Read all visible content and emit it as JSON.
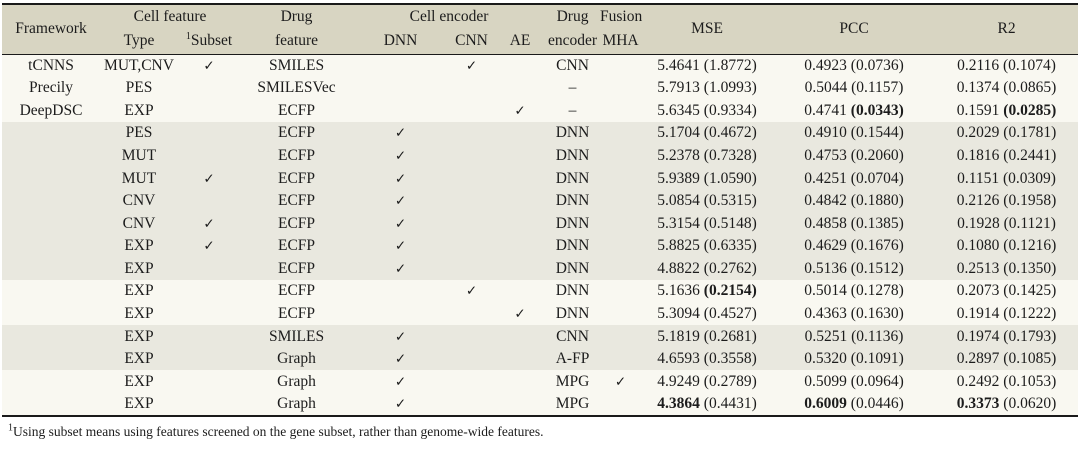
{
  "colors": {
    "header_bg": "#d8d5c2",
    "band_bg": "#e9e8df",
    "light_bg": "#f9f8f1",
    "rule": "#1a1a1a",
    "text": "#1c1c1c",
    "page_bg": "#ffffff"
  },
  "glyphs": {
    "check": "✓",
    "dash": "–"
  },
  "header": {
    "framework": "Framework",
    "cell_feature": "Cell feature",
    "type": "Type",
    "subset_sup": "1",
    "subset": "Subset",
    "drug_feature": "Drug\nfeature",
    "cell_encoder": "Cell encoder",
    "dnn": "DNN",
    "cnn": "CNN",
    "ae": "AE",
    "drug_encoder": "Drug\nencoder",
    "fusion": "Fusion\nMHA",
    "mse": "MSE",
    "pcc": "PCC",
    "r2": "R2"
  },
  "table": {
    "rows": [
      {
        "framework": "tCNNS",
        "type": "MUT,CNV",
        "subset": true,
        "drug_feature": "SMILES",
        "dnn": false,
        "cnn": true,
        "ae": false,
        "drug_encoder": "CNN",
        "mha": false,
        "shaded": false,
        "mse": {
          "mean": "5.4641",
          "std": "1.8772"
        },
        "pcc": {
          "mean": "0.4923",
          "std": "0.0736"
        },
        "r2": {
          "mean": "0.2116",
          "std": "0.1074"
        }
      },
      {
        "framework": "Precily",
        "type": "PES",
        "subset": false,
        "drug_feature": "SMILESVec",
        "dnn": false,
        "cnn": false,
        "ae": false,
        "drug_encoder": "–",
        "mha": false,
        "shaded": false,
        "mse": {
          "mean": "5.7913",
          "std": "1.0993"
        },
        "pcc": {
          "mean": "0.5044",
          "std": "0.1157"
        },
        "r2": {
          "mean": "0.1374",
          "std": "0.0865"
        }
      },
      {
        "framework": "DeepDSC",
        "type": "EXP",
        "subset": false,
        "drug_feature": "ECFP",
        "dnn": false,
        "cnn": false,
        "ae": true,
        "drug_encoder": "–",
        "mha": false,
        "shaded": false,
        "mse": {
          "mean": "5.6345",
          "std": "0.9334"
        },
        "pcc": {
          "mean": "0.4741",
          "std": "0.0343",
          "bold_std": true
        },
        "r2": {
          "mean": "0.1591",
          "std": "0.0285",
          "bold_std": true
        }
      },
      {
        "framework": "",
        "type": "PES",
        "subset": false,
        "drug_feature": "ECFP",
        "dnn": true,
        "cnn": false,
        "ae": false,
        "drug_encoder": "DNN",
        "mha": false,
        "shaded": true,
        "mse": {
          "mean": "5.1704",
          "std": "0.4672"
        },
        "pcc": {
          "mean": "0.4910",
          "std": "0.1544"
        },
        "r2": {
          "mean": "0.2029",
          "std": "0.1781"
        }
      },
      {
        "framework": "",
        "type": "MUT",
        "subset": false,
        "drug_feature": "ECFP",
        "dnn": true,
        "cnn": false,
        "ae": false,
        "drug_encoder": "DNN",
        "mha": false,
        "shaded": true,
        "mse": {
          "mean": "5.2378",
          "std": "0.7328"
        },
        "pcc": {
          "mean": "0.4753",
          "std": "0.2060"
        },
        "r2": {
          "mean": "0.1816",
          "std": "0.2441"
        }
      },
      {
        "framework": "",
        "type": "MUT",
        "subset": true,
        "drug_feature": "ECFP",
        "dnn": true,
        "cnn": false,
        "ae": false,
        "drug_encoder": "DNN",
        "mha": false,
        "shaded": true,
        "mse": {
          "mean": "5.9389",
          "std": "1.0590"
        },
        "pcc": {
          "mean": "0.4251",
          "std": "0.0704"
        },
        "r2": {
          "mean": "0.1151",
          "std": "0.0309"
        }
      },
      {
        "framework": "",
        "type": "CNV",
        "subset": false,
        "drug_feature": "ECFP",
        "dnn": true,
        "cnn": false,
        "ae": false,
        "drug_encoder": "DNN",
        "mha": false,
        "shaded": true,
        "mse": {
          "mean": "5.0854",
          "std": "0.5315"
        },
        "pcc": {
          "mean": "0.4842",
          "std": "0.1880"
        },
        "r2": {
          "mean": "0.2126",
          "std": "0.1958"
        }
      },
      {
        "framework": "",
        "type": "CNV",
        "subset": true,
        "drug_feature": "ECFP",
        "dnn": true,
        "cnn": false,
        "ae": false,
        "drug_encoder": "DNN",
        "mha": false,
        "shaded": true,
        "mse": {
          "mean": "5.3154",
          "std": "0.5148"
        },
        "pcc": {
          "mean": "0.4858",
          "std": "0.1385"
        },
        "r2": {
          "mean": "0.1928",
          "std": "0.1121"
        }
      },
      {
        "framework": "",
        "type": "EXP",
        "subset": true,
        "drug_feature": "ECFP",
        "dnn": true,
        "cnn": false,
        "ae": false,
        "drug_encoder": "DNN",
        "mha": false,
        "shaded": true,
        "mse": {
          "mean": "5.8825",
          "std": "0.6335"
        },
        "pcc": {
          "mean": "0.4629",
          "std": "0.1676"
        },
        "r2": {
          "mean": "0.1080",
          "std": "0.1216"
        }
      },
      {
        "framework": "",
        "type": "EXP",
        "subset": false,
        "drug_feature": "ECFP",
        "dnn": true,
        "cnn": false,
        "ae": false,
        "drug_encoder": "DNN",
        "mha": false,
        "shaded": true,
        "mse": {
          "mean": "4.8822",
          "std": "0.2762"
        },
        "pcc": {
          "mean": "0.5136",
          "std": "0.1512"
        },
        "r2": {
          "mean": "0.2513",
          "std": "0.1350"
        }
      },
      {
        "framework": "",
        "type": "EXP",
        "subset": false,
        "drug_feature": "ECFP",
        "dnn": false,
        "cnn": true,
        "ae": false,
        "drug_encoder": "DNN",
        "mha": false,
        "shaded": false,
        "mse": {
          "mean": "5.1636",
          "std": "0.2154",
          "bold_std": true
        },
        "pcc": {
          "mean": "0.5014",
          "std": "0.1278"
        },
        "r2": {
          "mean": "0.2073",
          "std": "0.1425"
        }
      },
      {
        "framework": "",
        "type": "EXP",
        "subset": false,
        "drug_feature": "ECFP",
        "dnn": false,
        "cnn": false,
        "ae": true,
        "drug_encoder": "DNN",
        "mha": false,
        "shaded": false,
        "mse": {
          "mean": "5.3094",
          "std": "0.4527"
        },
        "pcc": {
          "mean": "0.4363",
          "std": "0.1630"
        },
        "r2": {
          "mean": "0.1914",
          "std": "0.1222"
        }
      },
      {
        "framework": "",
        "type": "EXP",
        "subset": false,
        "drug_feature": "SMILES",
        "dnn": true,
        "cnn": false,
        "ae": false,
        "drug_encoder": "CNN",
        "mha": false,
        "shaded": true,
        "mse": {
          "mean": "5.1819",
          "std": "0.2681"
        },
        "pcc": {
          "mean": "0.5251",
          "std": "0.1136"
        },
        "r2": {
          "mean": "0.1974",
          "std": "0.1793"
        }
      },
      {
        "framework": "",
        "type": "EXP",
        "subset": false,
        "drug_feature": "Graph",
        "dnn": true,
        "cnn": false,
        "ae": false,
        "drug_encoder": "A-FP",
        "mha": false,
        "shaded": true,
        "mse": {
          "mean": "4.6593",
          "std": "0.3558"
        },
        "pcc": {
          "mean": "0.5320",
          "std": "0.1091"
        },
        "r2": {
          "mean": "0.2897",
          "std": "0.1085"
        }
      },
      {
        "framework": "",
        "type": "EXP",
        "subset": false,
        "drug_feature": "Graph",
        "dnn": true,
        "cnn": false,
        "ae": false,
        "drug_encoder": "MPG",
        "mha": true,
        "shaded": false,
        "mse": {
          "mean": "4.9249",
          "std": "0.2789"
        },
        "pcc": {
          "mean": "0.5099",
          "std": "0.0964"
        },
        "r2": {
          "mean": "0.2492",
          "std": "0.1053"
        }
      },
      {
        "framework": "",
        "type": "EXP",
        "subset": false,
        "drug_feature": "Graph",
        "dnn": true,
        "cnn": false,
        "ae": false,
        "drug_encoder": "MPG",
        "mha": false,
        "shaded": false,
        "mse": {
          "mean": "4.3864",
          "std": "0.4431",
          "bold_mean": true
        },
        "pcc": {
          "mean": "0.6009",
          "std": "0.0446",
          "bold_mean": true
        },
        "r2": {
          "mean": "0.3373",
          "std": "0.0620",
          "bold_mean": true
        }
      }
    ]
  },
  "footnote": {
    "sup": "1",
    "text": "Using subset means using features screened on the gene subset, rather than genome-wide features."
  }
}
